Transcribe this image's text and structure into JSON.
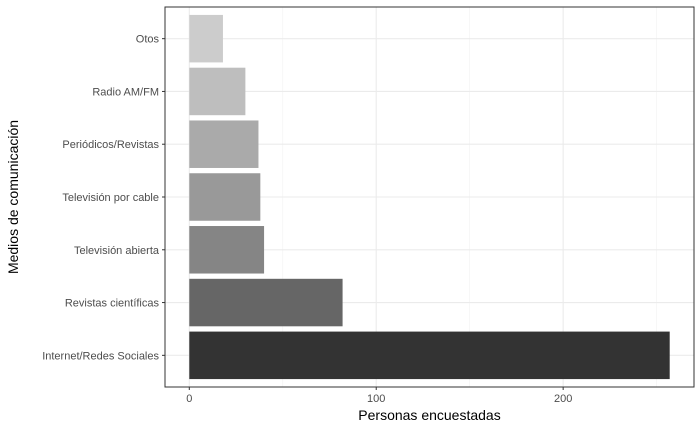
{
  "chart_data": {
    "type": "bar",
    "orientation": "horizontal",
    "title": "",
    "xlabel": "Personas encuestadas",
    "ylabel": "Medios de comunicación",
    "xlim": [
      -13,
      270
    ],
    "x_ticks": [
      0,
      100,
      200
    ],
    "grid": true,
    "legend": "none",
    "categories": [
      "Internet/Redes Sociales",
      "Revistas científicas",
      "Televisión abierta",
      "Televisión por cable",
      "Periódicos/Revistas",
      "Radio AM/FM",
      "Otos"
    ],
    "values": [
      257,
      82,
      40,
      38,
      37,
      30,
      18
    ],
    "colors": [
      "#333333",
      "#666666",
      "#858585",
      "#999999",
      "#aaaaaa",
      "#bebebe",
      "#cccccc"
    ]
  }
}
